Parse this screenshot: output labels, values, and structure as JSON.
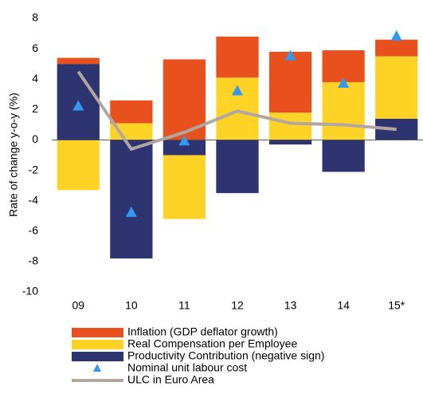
{
  "chart_data": {
    "type": "stacked_bar_line",
    "y_label": "Rate of change y-o-y (%)",
    "categories": [
      "09",
      "10",
      "11",
      "12",
      "13",
      "14",
      "15*"
    ],
    "ylim": [
      -10,
      8
    ],
    "yticks": [
      -10,
      -8,
      -6,
      -4,
      -2,
      0,
      2,
      4,
      6,
      8
    ],
    "series": [
      {
        "name": "Inflation (GDP deflator growth)",
        "color": "#e8501e",
        "kind": "bar",
        "values": [
          0.4,
          1.5,
          5.3,
          2.7,
          4.0,
          2.1,
          1.1
        ]
      },
      {
        "name": "Real Compensation per Employee",
        "color": "#ffd326",
        "kind": "bar",
        "values": [
          -3.3,
          1.1,
          -4.2,
          4.1,
          1.8,
          3.8,
          4.1
        ]
      },
      {
        "name": "Productivity Contribution (negative sign)",
        "color": "#2e3470",
        "kind": "bar",
        "values": [
          5.0,
          -7.8,
          -1.0,
          -3.5,
          -0.3,
          -2.1,
          1.4
        ]
      },
      {
        "name": "Nominal unit labour cost",
        "color": "#3399ee",
        "kind": "marker",
        "values": [
          2.2,
          -4.8,
          -0.1,
          3.2,
          5.5,
          3.7,
          6.8
        ]
      },
      {
        "name": "ULC in Euro Area",
        "color": "#b0a8a0",
        "kind": "line",
        "values": [
          4.5,
          -0.6,
          0.5,
          1.9,
          1.1,
          1.0,
          0.7
        ]
      }
    ]
  }
}
